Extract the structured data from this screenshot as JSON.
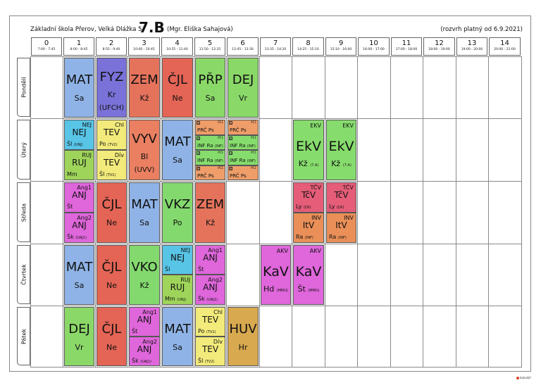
{
  "header": {
    "school": "Základní škola Přerov, Velká Dlážka 5",
    "class": "7.B",
    "teacher": "(Mgr. Eliška Sahajová)",
    "valid": "(rozvrh platný od 6.9.2021)"
  },
  "periods": [
    {
      "num": "0",
      "time": "7:00 - 7:45"
    },
    {
      "num": "1",
      "time": "8:00 - 8:45"
    },
    {
      "num": "2",
      "time": "8:55 - 9:40"
    },
    {
      "num": "3",
      "time": "10:00 - 10:45"
    },
    {
      "num": "4",
      "time": "10:55 - 11:40"
    },
    {
      "num": "5",
      "time": "11:50 - 12:35"
    },
    {
      "num": "6",
      "time": "12:45 - 13:30"
    },
    {
      "num": "7",
      "time": "13:35 - 14:20"
    },
    {
      "num": "8",
      "time": "14:25 - 15:10"
    },
    {
      "num": "9",
      "time": "15:10 - 16:00"
    },
    {
      "num": "10",
      "time": "16:00 - 17:00"
    },
    {
      "num": "11",
      "time": "17:00 - 18:00"
    },
    {
      "num": "12",
      "time": "18:00 - 19:00"
    },
    {
      "num": "13",
      "time": "19:00 - 20:00"
    },
    {
      "num": "14",
      "time": "20:00 - 21:00"
    }
  ],
  "days": [
    "Pondělí",
    "Úterý",
    "Středa",
    "Čtvrtek",
    "Pátek"
  ],
  "colors": {
    "MAT": "#8fb3e6",
    "FYZ": "#7a72d8",
    "ZEM": "#e5735c",
    "CJL": "#e46455",
    "PRP": "#8ad868",
    "DEJ": "#8ad868",
    "NEJ": "#58c4e6",
    "RUJ": "#9ed45a",
    "TEV": "#f2ea7a",
    "VYV": "#ea7f61",
    "ANJ": "#df66db",
    "VKZ": "#83d96e",
    "VKO": "#83d96e",
    "HUV": "#d8a94f",
    "EKV": "#86dc6c",
    "TCV": "#e55d78",
    "ITV": "#ea8f58",
    "AKV": "#df66db",
    "PRC": "#ef9d69",
    "INF": "#86dc6c"
  },
  "lessons": {
    "monday": [
      {
        "subject": "MAT",
        "teacher": "Sa"
      },
      {
        "subject": "FYZ",
        "teacher": "Kr",
        "room": "(UFCH)"
      },
      {
        "subject": "ZEM",
        "teacher": "Kž"
      },
      {
        "subject": "ČJL",
        "teacher": "Ne"
      },
      {
        "subject": "PŘP",
        "teacher": "Sa"
      },
      {
        "subject": "DEJ",
        "teacher": "Vr"
      }
    ],
    "tuesday": {
      "p1": [
        {
          "group": "NEJ",
          "subject": "NEJ",
          "teacher": "Šl",
          "room": "(UNJ)"
        },
        {
          "group": "RUJ",
          "subject": "RUJ",
          "teacher": "Mm"
        }
      ],
      "p2": [
        {
          "group": "Chl",
          "subject": "TEV",
          "teacher": "Po",
          "room": "(TV2)"
        },
        {
          "group": "Dív",
          "subject": "TEV",
          "teacher": "Šl",
          "room": "(TV1)"
        }
      ],
      "p3": {
        "subject": "VYV",
        "teacher": "Bl",
        "room": "(UVV)"
      },
      "p4": {
        "subject": "MAT",
        "teacher": "Sa"
      },
      "p5": [
        {
          "num": "1",
          "subject": "PRČ",
          "teacher": "Ps",
          "group": "PČ1"
        },
        {
          "num": "2",
          "subject": "INF",
          "teacher": "Ra",
          "room": "(INF)",
          "group": "PČ1"
        },
        {
          "num": "3",
          "subject": "INF",
          "teacher": "Ra",
          "room": "(INF)",
          "group": "PČ1"
        },
        {
          "num": "4",
          "subject": "PRČ",
          "teacher": "Ps",
          "group": "PČ1"
        }
      ],
      "p6": [
        {
          "num": "1",
          "subject": "PRČ",
          "teacher": "Ps",
          "group": "PČ1"
        },
        {
          "num": "2",
          "subject": "INF",
          "teacher": "Ra",
          "room": "(INF)",
          "group": "PČ1"
        },
        {
          "num": "3",
          "subject": "INF",
          "teacher": "Ra",
          "room": "(INF)",
          "group": "PČ1"
        },
        {
          "num": "4",
          "subject": "PRČ",
          "teacher": "Ps",
          "group": "PČ1"
        }
      ],
      "p8": {
        "group": "EKV",
        "subject": "EkV",
        "teacher": "Kž",
        "room": "(7.A)"
      },
      "p9": {
        "group": "EKV",
        "subject": "EkV",
        "teacher": "Kž",
        "room": "(7.A)"
      }
    },
    "wednesday": {
      "p1": [
        {
          "group": "Ang1",
          "subject": "ANJ",
          "teacher": "Št"
        },
        {
          "group": "Ang2",
          "subject": "ANJ",
          "teacher": "Šk",
          "room": "(UAJ1)"
        }
      ],
      "p2": {
        "subject": "ČJL",
        "teacher": "Ne"
      },
      "p3": {
        "subject": "MAT",
        "teacher": "Sa"
      },
      "p4": {
        "subject": "VKZ",
        "teacher": "Po"
      },
      "p5": {
        "subject": "ZEM",
        "teacher": "Kž"
      },
      "p8": [
        {
          "group": "TČV",
          "subject": "TčV",
          "teacher": "Ly",
          "room": "(Díl)"
        },
        {
          "group": "INV",
          "subject": "ItV",
          "teacher": "Ra",
          "room": "(INF)"
        }
      ],
      "p9": [
        {
          "group": "TČV",
          "subject": "TčV",
          "teacher": "Ly",
          "room": "(Díl)"
        },
        {
          "group": "INV",
          "subject": "ItV",
          "teacher": "Ra",
          "room": "(INF)"
        }
      ]
    },
    "thursday": {
      "p1": {
        "subject": "MAT",
        "teacher": "Sa"
      },
      "p2": {
        "subject": "ČJL",
        "teacher": "Ne"
      },
      "p3": {
        "subject": "VKO",
        "teacher": "Kž"
      },
      "p4": [
        {
          "group": "NEJ",
          "subject": "NEJ",
          "teacher": "Šl"
        },
        {
          "group": "RUJ",
          "subject": "RUJ",
          "teacher": "Mm",
          "room": "(UNJ)"
        }
      ],
      "p5": [
        {
          "group": "Ang1",
          "subject": "ANJ",
          "teacher": "Št"
        },
        {
          "group": "Ang2",
          "subject": "ANJ",
          "teacher": "Šk",
          "room": "(UAJ1)"
        }
      ],
      "p7": {
        "group": "AKV",
        "subject": "KaV",
        "teacher": "Hd",
        "room": "(MMU)"
      },
      "p8": {
        "group": "AKV",
        "subject": "KaV",
        "teacher": "Št",
        "room": "(MMU)"
      }
    },
    "friday": {
      "p1": {
        "subject": "DEJ",
        "teacher": "Vr"
      },
      "p2": {
        "subject": "ČJL",
        "teacher": "Ne"
      },
      "p3": [
        {
          "group": "Ang1",
          "subject": "ANJ",
          "teacher": "Št"
        },
        {
          "group": "Ang2",
          "subject": "ANJ",
          "teacher": "Šk",
          "room": "(UAJ1)"
        }
      ],
      "p4": {
        "subject": "MAT",
        "teacher": "Sa"
      },
      "p5": [
        {
          "group": "Chl",
          "subject": "TEV",
          "teacher": "Po",
          "room": "(TV1)"
        },
        {
          "group": "Dív",
          "subject": "TEV",
          "teacher": "Šl",
          "room": "(TV2)"
        }
      ],
      "p6": {
        "subject": "HUV",
        "teacher": "Hr"
      }
    }
  },
  "footer": {
    "logo_text": "bakaláři"
  }
}
